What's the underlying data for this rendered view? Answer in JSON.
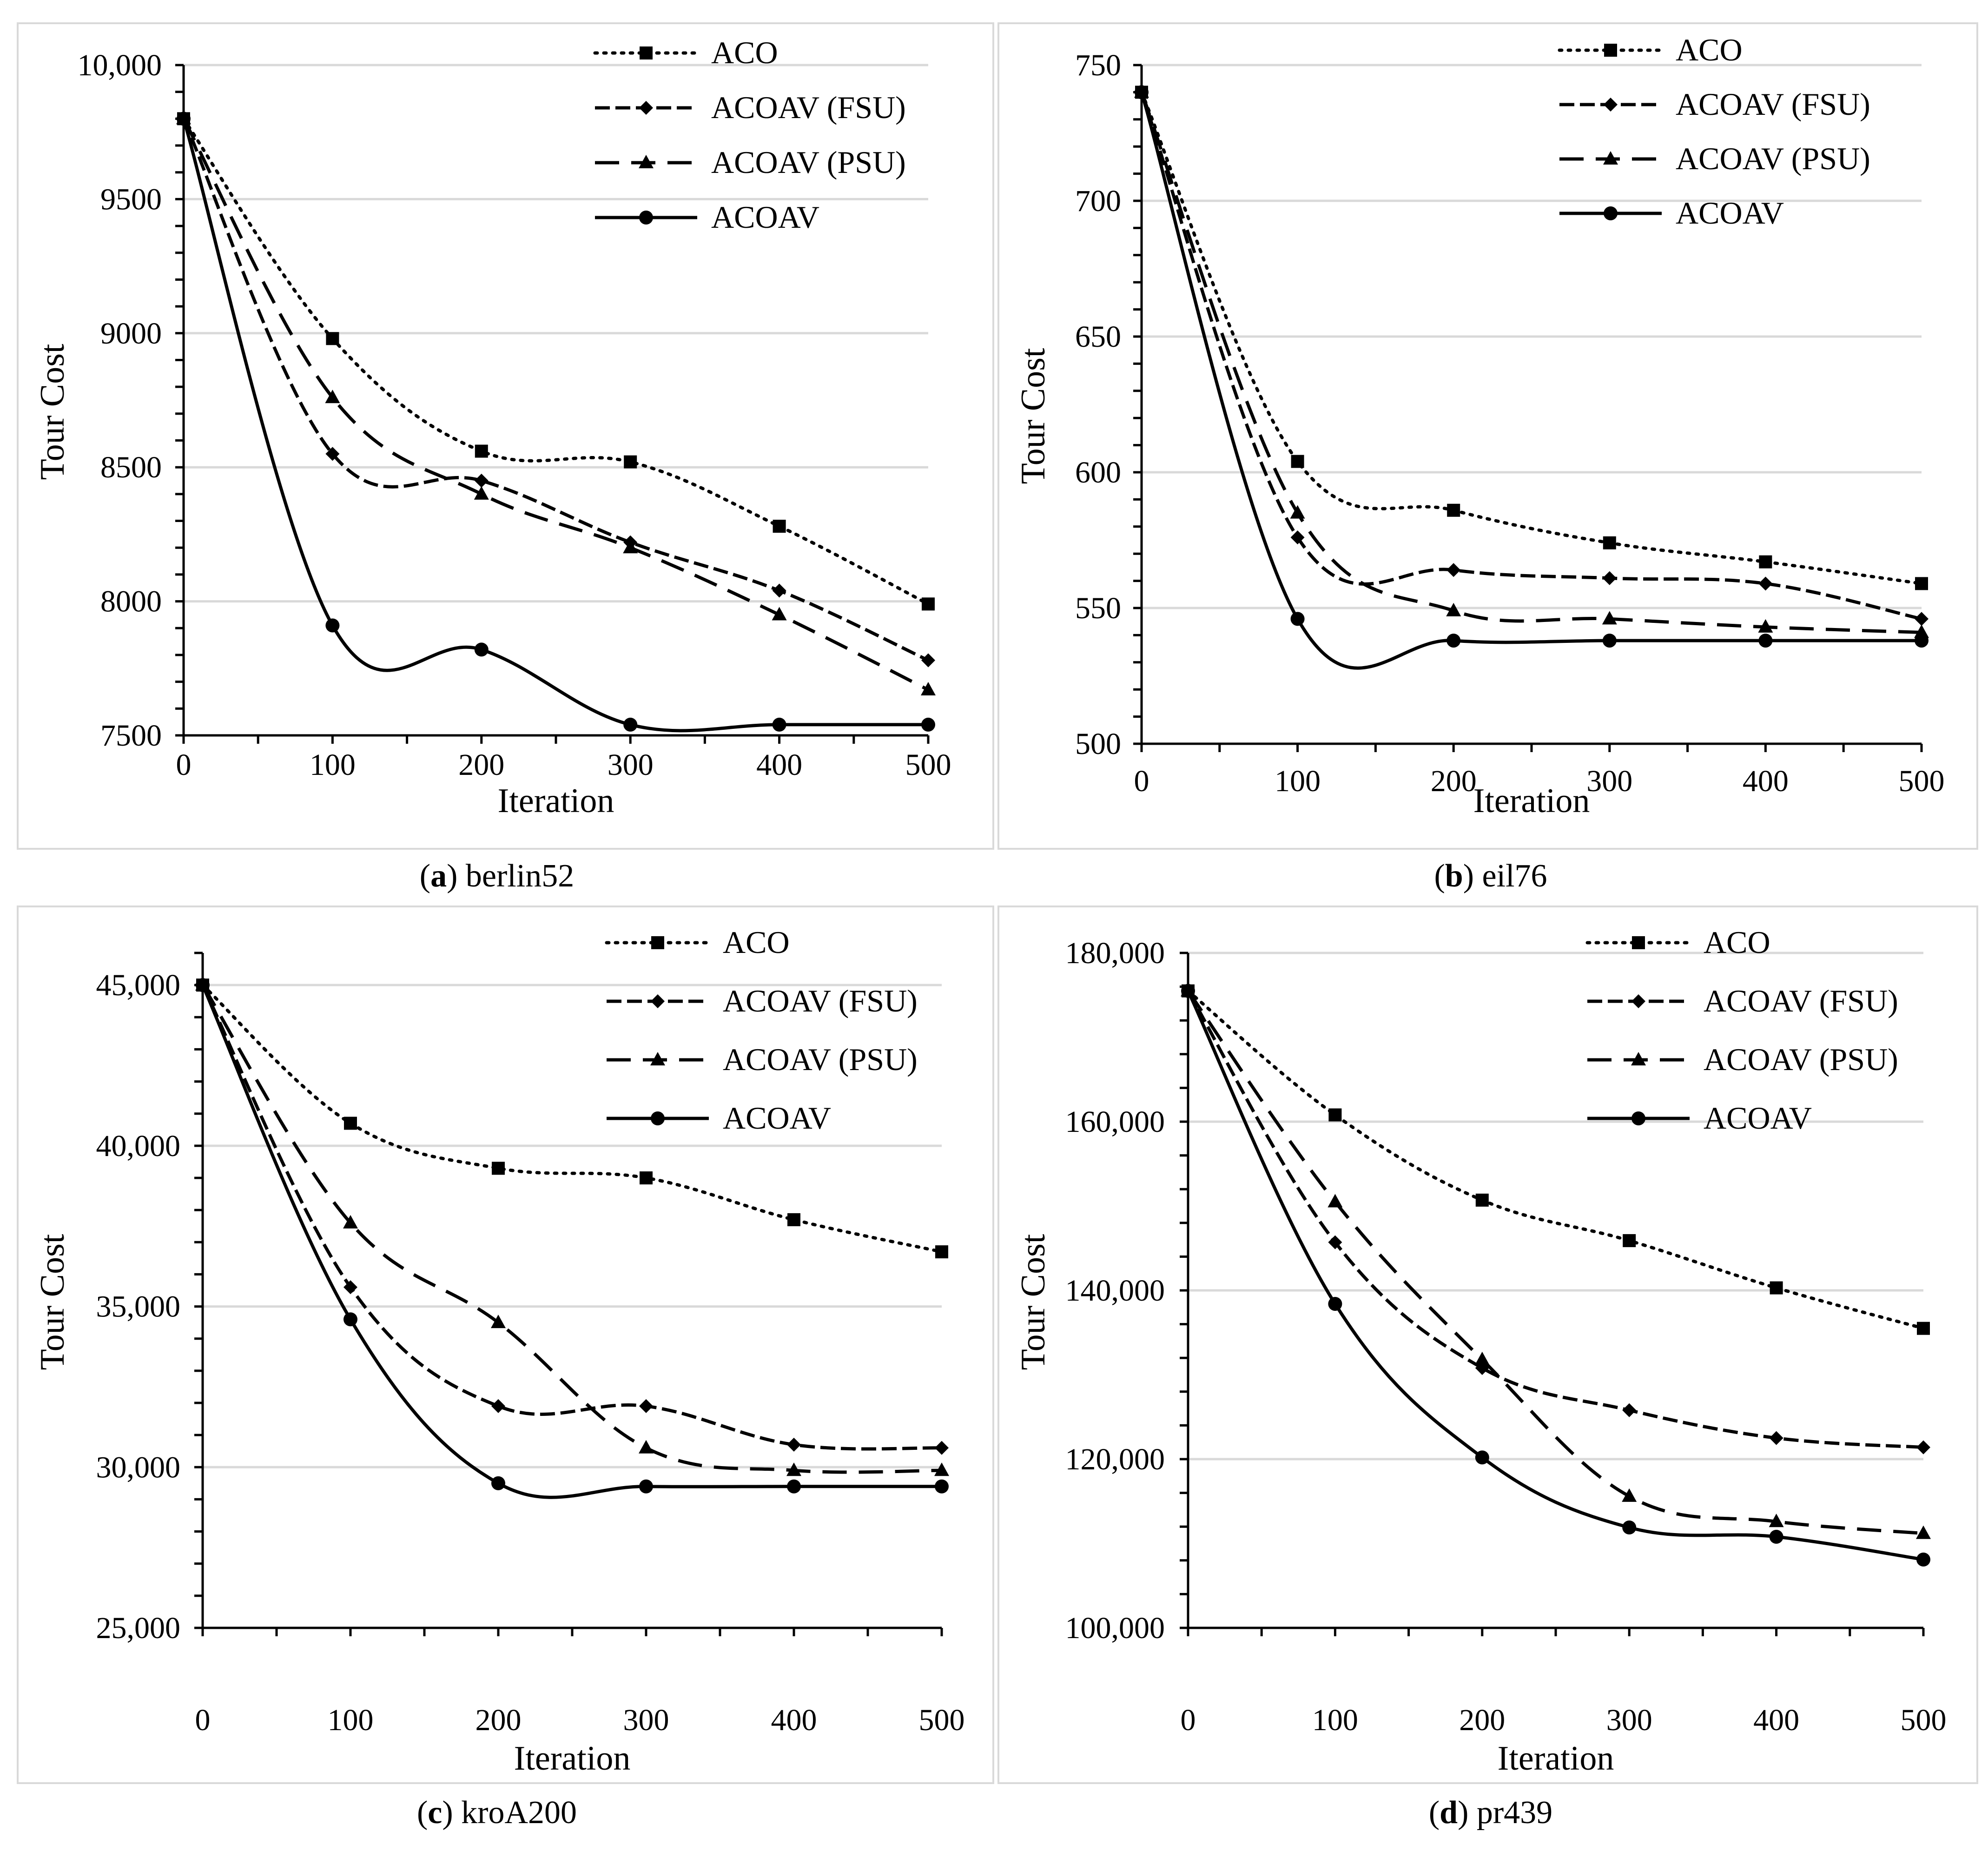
{
  "figure": {
    "captions": [
      {
        "letter": "a",
        "name": "berlin52"
      },
      {
        "letter": "b",
        "name": "eil76"
      },
      {
        "letter": "c",
        "name": "kroA200"
      },
      {
        "letter": "d",
        "name": "pr439"
      }
    ]
  },
  "chart_data": [
    {
      "type": "line",
      "title": "berlin52",
      "xlabel": "Iteration",
      "ylabel": "Tour Cost",
      "x": [
        0,
        100,
        200,
        300,
        400,
        500
      ],
      "xticks": [
        "0",
        "100",
        "200",
        "300",
        "400",
        "500"
      ],
      "ylim": [
        7500,
        10000
      ],
      "yticks": [
        7500,
        8000,
        8500,
        9000,
        9500,
        10000
      ],
      "ytick_labels": [
        "7500",
        "8000",
        "8500",
        "9000",
        "9500",
        "10,000"
      ],
      "series": [
        {
          "name": "ACO",
          "values": [
            9800,
            8980,
            8560,
            8520,
            8280,
            7990
          ]
        },
        {
          "name": "ACOAV (FSU)",
          "values": [
            9800,
            8550,
            8450,
            8220,
            8040,
            7780
          ]
        },
        {
          "name": "ACOAV (PSU)",
          "values": [
            9800,
            8760,
            8400,
            8200,
            7950,
            7670
          ]
        },
        {
          "name": "ACOAV",
          "values": [
            9800,
            7910,
            7820,
            7540,
            7540,
            7540
          ]
        }
      ]
    },
    {
      "type": "line",
      "title": "eil76",
      "xlabel": "Iteration",
      "ylabel": "Tour Cost",
      "x": [
        0,
        100,
        200,
        300,
        400,
        500
      ],
      "xticks": [
        "0",
        "100",
        "200",
        "300",
        "400",
        "500"
      ],
      "ylim": [
        500,
        750
      ],
      "yticks": [
        500,
        550,
        600,
        650,
        700,
        750
      ],
      "ytick_labels": [
        "500",
        "550",
        "600",
        "650",
        "700",
        "750"
      ],
      "series": [
        {
          "name": "ACO",
          "values": [
            740,
            604,
            586,
            574,
            567,
            559
          ]
        },
        {
          "name": "ACOAV (FSU)",
          "values": [
            740,
            576,
            564,
            561,
            559,
            546
          ]
        },
        {
          "name": "ACOAV (PSU)",
          "values": [
            740,
            585,
            549,
            546,
            543,
            541
          ]
        },
        {
          "name": "ACOAV",
          "values": [
            740,
            546,
            538,
            538,
            538,
            538
          ]
        }
      ]
    },
    {
      "type": "line",
      "title": "kroA200",
      "xlabel": "Iteration",
      "ylabel": "Tour Cost",
      "x": [
        0,
        100,
        200,
        300,
        400,
        500
      ],
      "xticks": [
        "0",
        "100",
        "200",
        "300",
        "400",
        "500"
      ],
      "ylim": [
        25000,
        46000
      ],
      "yticks": [
        25000,
        30000,
        35000,
        40000,
        45000
      ],
      "ytick_labels": [
        "25,000",
        "30,000",
        "35,000",
        "40,000",
        "45,000"
      ],
      "series": [
        {
          "name": "ACO",
          "values": [
            45000,
            40700,
            39300,
            39000,
            37700,
            36700
          ]
        },
        {
          "name": "ACOAV (FSU)",
          "values": [
            45000,
            35600,
            31900,
            31900,
            30700,
            30600
          ]
        },
        {
          "name": "ACOAV (PSU)",
          "values": [
            45000,
            37600,
            34500,
            30600,
            29900,
            29900
          ]
        },
        {
          "name": "ACOAV",
          "values": [
            45000,
            34600,
            29500,
            29400,
            29400,
            29400
          ]
        }
      ]
    },
    {
      "type": "line",
      "title": "pr439",
      "xlabel": "Iteration",
      "ylabel": "Tour Cost",
      "x": [
        0,
        100,
        200,
        300,
        400,
        500
      ],
      "xticks": [
        "0",
        "100",
        "200",
        "300",
        "400",
        "500"
      ],
      "ylim": [
        100000,
        180000
      ],
      "yticks": [
        100000,
        120000,
        140000,
        160000,
        180000
      ],
      "ytick_labels": [
        "100,000",
        "120,000",
        "140,000",
        "160,000",
        "180,000"
      ],
      "series": [
        {
          "name": "ACO",
          "values": [
            175500,
            160800,
            150700,
            145900,
            140300,
            135500
          ]
        },
        {
          "name": "ACOAV (FSU)",
          "values": [
            175500,
            145700,
            130800,
            125800,
            122500,
            121400
          ]
        },
        {
          "name": "ACOAV (PSU)",
          "values": [
            175500,
            150500,
            131800,
            115600,
            112600,
            111200
          ]
        },
        {
          "name": "ACOAV",
          "values": [
            175500,
            138400,
            120200,
            111900,
            110800,
            108100
          ]
        }
      ]
    }
  ]
}
